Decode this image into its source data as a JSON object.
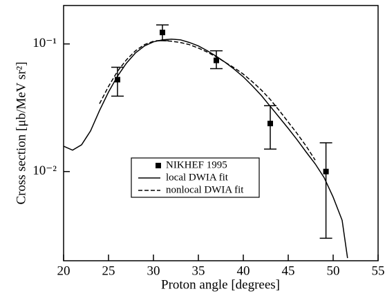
{
  "chart_data": {
    "type": "line",
    "xlabel": "Proton angle [degrees]",
    "ylabel": "Cross section [μb/MeV sr²]",
    "xlim": [
      20,
      55
    ],
    "xticks": [
      20,
      25,
      30,
      35,
      40,
      45,
      50,
      55
    ],
    "ylim": [
      0.002,
      0.2
    ],
    "log_y": true,
    "yticks": [
      {
        "value": 0.1,
        "label": "10⁻¹"
      },
      {
        "value": 0.01,
        "label": "10⁻²"
      }
    ],
    "series": [
      {
        "name": "NIKHEF 1995",
        "kind": "points",
        "color": "#000000",
        "x": [
          26,
          31,
          37,
          43,
          49.2
        ],
        "values": [
          0.0525,
          0.123,
          0.0743,
          0.0238,
          0.01
        ],
        "lows": [
          0.039,
          0.106,
          0.064,
          0.015,
          0.003
        ],
        "highs": [
          0.0657,
          0.141,
          0.0884,
          0.0328,
          0.0168
        ]
      },
      {
        "name": "local DWIA fit",
        "kind": "solid",
        "color": "#000000",
        "x": [
          20,
          21,
          22,
          23,
          24,
          25,
          26,
          27,
          28,
          29,
          30,
          31,
          32,
          33,
          34,
          35,
          36,
          37,
          38,
          39,
          40,
          41,
          42,
          43,
          44,
          45,
          46,
          47,
          48,
          49,
          50,
          51,
          51.6
        ],
        "values": [
          0.0158,
          0.0147,
          0.0162,
          0.0208,
          0.0301,
          0.042,
          0.0559,
          0.0707,
          0.0851,
          0.0964,
          0.1038,
          0.1077,
          0.109,
          0.1077,
          0.1026,
          0.0964,
          0.0884,
          0.08,
          0.0716,
          0.0633,
          0.0552,
          0.047,
          0.0395,
          0.0324,
          0.0266,
          0.0218,
          0.0177,
          0.0142,
          0.0115,
          0.00895,
          0.0063,
          0.00415,
          0.0021
        ]
      },
      {
        "name": "nonlocal DWIA fit",
        "kind": "dashed",
        "color": "#000000",
        "x": [
          24,
          25,
          26,
          27,
          28,
          29,
          30,
          31,
          32,
          33,
          34,
          35,
          36,
          37,
          38,
          39,
          40,
          41,
          42,
          43,
          44,
          45,
          46,
          47,
          48
        ],
        "values": [
          0.034,
          0.0465,
          0.061,
          0.0752,
          0.0884,
          0.0988,
          0.105,
          0.1064,
          0.105,
          0.1026,
          0.0988,
          0.0928,
          0.0862,
          0.0791,
          0.0716,
          0.0649,
          0.058,
          0.0506,
          0.0436,
          0.0367,
          0.0301,
          0.0244,
          0.0198,
          0.0158,
          0.0123
        ]
      }
    ]
  }
}
